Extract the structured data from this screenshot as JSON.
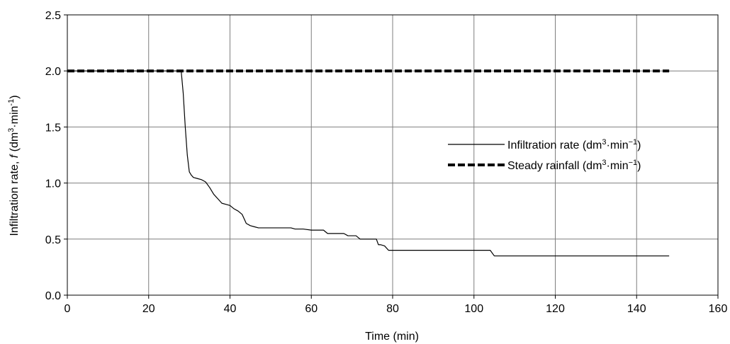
{
  "chart_data": {
    "type": "line",
    "xlabel": "Time (min)",
    "ylabel": {
      "pre": "Infiltration rate, ",
      "var": "f",
      "unit": " (dm",
      "sup1": "3",
      "mid": "·min",
      "sup2": "-1",
      "close": ")"
    },
    "xlim": [
      0,
      160
    ],
    "ylim": [
      0,
      2.5
    ],
    "xticks": [
      0,
      20,
      40,
      60,
      80,
      100,
      120,
      140,
      160
    ],
    "yticks": [
      0,
      0.5,
      1.0,
      1.5,
      2.0,
      2.5
    ],
    "xtick_labels": [
      "0",
      "20",
      "40",
      "60",
      "80",
      "100",
      "120",
      "140",
      "160"
    ],
    "ytick_labels": [
      "0.0",
      "0.5",
      "1.0",
      "1.5",
      "2.0",
      "2.5"
    ],
    "grid": true,
    "legend_position": "right-middle",
    "series": [
      {
        "name": "Infiltration rate",
        "legend": {
          "pre": "Infiltration rate (dm",
          "sup1": "3",
          "mid": "·min",
          "sup2": "−1",
          "close": ")"
        },
        "style": "solid",
        "color": "#000000",
        "x": [
          0,
          28,
          28.5,
          29,
          29.5,
          30,
          30.5,
          31,
          32,
          33,
          34,
          35,
          36,
          37,
          38,
          39,
          40,
          41,
          42,
          43,
          44,
          45,
          46,
          47,
          50,
          55,
          56,
          58,
          60,
          61,
          63,
          64,
          66,
          68,
          69,
          70,
          71,
          72,
          74,
          75,
          76,
          76.5,
          77,
          78,
          79,
          80,
          85,
          90,
          95,
          100,
          104,
          105,
          110,
          120,
          130,
          140,
          148
        ],
        "y": [
          2.0,
          2.0,
          1.8,
          1.5,
          1.25,
          1.1,
          1.07,
          1.05,
          1.04,
          1.03,
          1.01,
          0.96,
          0.9,
          0.86,
          0.82,
          0.81,
          0.8,
          0.77,
          0.75,
          0.72,
          0.64,
          0.62,
          0.61,
          0.6,
          0.6,
          0.6,
          0.59,
          0.59,
          0.58,
          0.58,
          0.58,
          0.55,
          0.55,
          0.55,
          0.53,
          0.53,
          0.53,
          0.5,
          0.5,
          0.5,
          0.5,
          0.45,
          0.45,
          0.44,
          0.4,
          0.4,
          0.4,
          0.4,
          0.4,
          0.4,
          0.4,
          0.35,
          0.35,
          0.35,
          0.35,
          0.35,
          0.35
        ]
      },
      {
        "name": "Steady rainfall",
        "legend": {
          "pre": "Steady rainfall (dm",
          "sup1": "3",
          "mid": "·min",
          "sup2": "−1",
          "close": ")"
        },
        "style": "dashed",
        "color": "#000000",
        "x": [
          0,
          148
        ],
        "y": [
          2.0,
          2.0
        ]
      }
    ]
  }
}
